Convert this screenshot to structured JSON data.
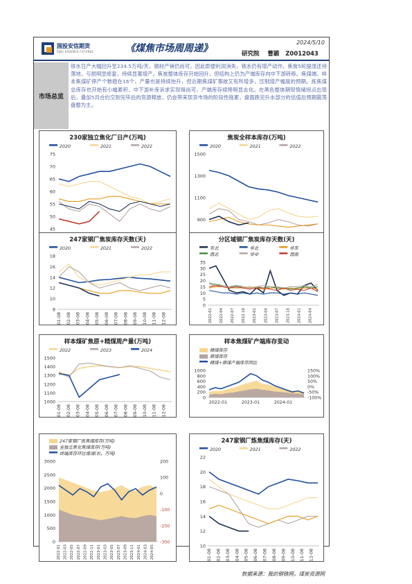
{
  "header": {
    "company": "国投安信期货",
    "company_en": "SDIC ESSENCE FUTURES",
    "title": "《煤焦市场周周递》",
    "date": "2024/5/10",
    "department": "研究院",
    "analyst": "曹颖",
    "analyst_id": "Z0012043"
  },
  "summary": {
    "label": "市场总览",
    "text": "铁水日产大幅回升至234.5万吨/天，钢材产销仍尚可，因此即便利润消失，铁水仍有增产动作。焦炭5轮提涨还待落地，亏损明显修复，持续显著增产。焦炭整体库存开始回升，但结构上仍为产端库存向中下游转移。焦煤端，样本焦煤矿停产个数稳在16个，产量也是持续抬升，但近期焦煤矿事故又有所增多，压制增产幅度的预期。炼焦煤总库存也开始有小幅累积，中下游补库诉求实现得尚可，产端库存续降明显去化。在黑色整体期现情绪拐点出现后，叠加5月合约交割完毕后的货源释放，仍会带来现货市场的阶段性拖累，盘面跌完升水部分的估值后预期震荡盘整为主。"
  },
  "colors": {
    "navy": "#1f4e9c",
    "lightorange": "#f6d58e",
    "gray": "#b3a3a3",
    "orange": "#e69a1c",
    "dark": "#1e2f4e",
    "green": "#4b8a3a",
    "red": "#c0392b"
  },
  "charts": [
    {
      "chart_data": {
        "type": "line",
        "title": "230家独立焦化厂日产(万吨)",
        "legend": [
          "2020",
          "2021",
          "2022"
        ],
        "ylim": [
          40,
          75
        ],
        "yticks": [
          "75",
          "70",
          "65",
          "60",
          "55",
          "50",
          "45",
          "40"
        ],
        "xticks": [
          "01-08",
          "02-08",
          "03-08",
          "04-08",
          "05-08",
          "06-08",
          "07-08",
          "08-08",
          "09-08",
          "10-08",
          "11-08",
          "12-08"
        ],
        "series": [
          {
            "name": "2020",
            "values": [
              65,
              64,
              66,
              67,
              68,
              68,
              69,
              70,
              71,
              70,
              68,
              66
            ]
          },
          {
            "name": "2021",
            "values": [
              63,
              62,
              63,
              64,
              64,
              62,
              60,
              58,
              57,
              55,
              56,
              57
            ]
          },
          {
            "name": "2022",
            "values": [
              56,
              53,
              52,
              55,
              54,
              51,
              48,
              53,
              55,
              53,
              52,
              54
            ]
          },
          {
            "values": [
              57,
              56,
              56,
              57,
              57,
              58,
              58,
              57,
              56,
              55,
              55,
              55
            ]
          },
          {
            "values": [
              55,
              54,
              53,
              56,
              55,
              53,
              52,
              55,
              56,
              55,
              54,
              55
            ]
          },
          {
            "values": [
              49,
              48,
              47,
              48,
              52
            ]
          }
        ]
      }
    },
    {
      "chart_data": {
        "type": "line",
        "title": "焦炭全样本库存(万吨)",
        "legend": [
          "2020",
          "2021",
          "2022"
        ],
        "ylim": [
          700,
          1500
        ],
        "yticks": [
          "1500",
          "1300",
          "1100",
          "900",
          "700"
        ],
        "xticks": [
          "01-08",
          "02-08",
          "03-08",
          "04-08",
          "05-08",
          "06-08",
          "07-08",
          "08-08",
          "09-08",
          "10-08",
          "11-08",
          "12-08"
        ],
        "series": [
          {
            "name": "2020",
            "values": [
              1350,
              1330,
              1300,
              1250,
              1200,
              1180,
              1170,
              1150,
              1120,
              1100,
              1080,
              1060
            ]
          },
          {
            "name": "2021",
            "values": [
              1000,
              1050,
              1000,
              950,
              900,
              920,
              980,
              1000,
              960,
              930,
              920,
              930
            ]
          },
          {
            "name": "2022",
            "values": [
              950,
              1000,
              980,
              900,
              880,
              850,
              870,
              900,
              880,
              850,
              840,
              860
            ]
          },
          {
            "values": [
              880,
              900,
              920,
              880,
              860,
              850,
              850,
              840,
              830,
              840,
              850,
              860
            ]
          },
          {
            "values": [
              900,
              930,
              880,
              850,
              870
            ]
          }
        ]
      }
    },
    {
      "chart_data": {
        "type": "line",
        "title": "247家钢厂焦炭库存天数(天)",
        "legend": [
          "2020",
          "2021",
          "2022"
        ],
        "ylim": [
          8,
          18
        ],
        "yticks": [
          "18",
          "16",
          "14",
          "12",
          "10",
          "8"
        ],
        "xticks": [
          "01-08",
          "02-08",
          "03-08",
          "04-08",
          "05-08",
          "06-08",
          "07-08",
          "08-08",
          "09-08",
          "10-08",
          "11-08",
          "12-08"
        ],
        "series": [
          {
            "name": "2020",
            "values": [
              14,
              13.5,
              13,
              13.2,
              13.5,
              13.6,
              13.8,
              14,
              13.8,
              13.7,
              13.5,
              13.3
            ]
          },
          {
            "name": "2021",
            "values": [
              15,
              16.5,
              14,
              13,
              12.5,
              13,
              13.5,
              14,
              14.5,
              14.5,
              15,
              15
            ]
          },
          {
            "name": "2022",
            "values": [
              14,
              16,
              15,
              13,
              12,
              12.5,
              13,
              12,
              11.5,
              12,
              12.5,
              12
            ]
          },
          {
            "values": [
              13,
              12.5,
              12,
              11.5,
              11,
              11,
              11.5,
              11.5,
              11.2,
              11,
              11,
              11.5
            ]
          },
          {
            "values": [
              13,
              12.5,
              12,
              11,
              10.5
            ]
          }
        ]
      }
    },
    {
      "chart_data": {
        "type": "line",
        "title": "分区域钢厂焦炭库存天数(天)",
        "legend": [
          "东北",
          "华北",
          "华东",
          "西北",
          "华中",
          "西南"
        ],
        "ylim": [
          0,
          35
        ],
        "yticks": [
          "35",
          "30",
          "25",
          "20",
          "15",
          "10",
          "5",
          "0"
        ],
        "xticks": [
          "2022-01",
          "2022-04",
          "2022-07",
          "2022-10",
          "2023-01",
          "2023-04",
          "2023-07",
          "2023-10",
          "2024-01",
          "2024-04"
        ],
        "series": [
          {
            "name": "东北",
            "values": [
              30,
              32,
              22,
              12,
              10,
              11,
              9,
              14,
              10,
              28,
              12,
              8,
              10,
              9,
              16,
              18,
              12
            ]
          },
          {
            "name": "华北",
            "values": [
              12,
              11,
              10,
              10,
              9,
              10,
              9,
              10,
              9,
              10,
              10,
              9,
              10,
              9,
              10,
              9,
              8
            ]
          },
          {
            "name": "华东",
            "values": [
              14,
              15,
              15,
              14,
              14,
              14,
              15,
              14,
              13,
              14,
              14,
              13,
              14,
              13,
              14,
              14,
              13
            ]
          },
          {
            "name": "西北",
            "values": [
              18,
              17,
              16,
              15,
              16,
              15,
              14,
              15,
              14,
              15,
              14,
              14,
              13,
              14,
              15,
              14,
              15
            ]
          },
          {
            "name": "华中",
            "values": [
              17,
              16,
              16,
              15,
              14,
              15,
              14,
              15,
              16,
              15,
              15,
              14,
              15,
              15,
              16,
              15,
              17
            ]
          },
          {
            "name": "西南",
            "values": [
              15,
              16,
              15,
              14,
              15,
              14,
              13,
              14,
              14,
              13,
              12,
              14,
              12,
              13,
              12,
              14,
              11
            ]
          }
        ]
      }
    },
    {
      "chart_data": {
        "type": "line",
        "title": "样本煤矿焦原+精煤周产量(万吨)",
        "legend": [
          "2022",
          "2023",
          "2024"
        ],
        "ylim": [
          1000,
          1500
        ],
        "yticks": [
          "1500",
          "1400",
          "1300",
          "1200",
          "1100",
          "1000"
        ],
        "xticks": [
          "01-08",
          "02-08",
          "03-08",
          "04-08",
          "05-08",
          "06-08",
          "07-08",
          "08-08",
          "09-08",
          "10-08",
          "11-08",
          "12-08"
        ],
        "series": [
          {
            "name": "2022",
            "values": [
              1340,
              1300,
              1380,
              1400,
              1410,
              1400,
              1390,
              1400,
              1400,
              1380,
              1360,
              1340
            ]
          },
          {
            "name": "2023",
            "values": [
              1330,
              1280,
              1430,
              1440,
              1420,
              1400,
              1390,
              1410,
              1380,
              1350,
              1280,
              1250
            ]
          },
          {
            "name": "2024",
            "values": [
              1320,
              1300,
              1050,
              1150,
              1250,
              1280,
              1310
            ]
          }
        ]
      }
    },
    {
      "chart_data": {
        "type": "area",
        "title": "样本焦煤矿产端库存变动",
        "legend": [
          "精煤库存",
          "原煤库存",
          "精煤+原煤产端库存同比"
        ],
        "ylim": [
          0,
          1000
        ],
        "yticks": [
          "1000",
          "800",
          "600",
          "400",
          "200",
          "0"
        ],
        "y2ticks": [
          "150%",
          "100%",
          "50%",
          "0%",
          "-50%",
          "-100%"
        ],
        "xticks": [
          "2022-01",
          "2023-01",
          "2024-01"
        ],
        "series": [
          {
            "name": "精煤库存",
            "values": [
              200,
              250,
              230,
              300,
              350,
              420,
              500,
              560,
              620,
              500,
              480,
              400,
              350,
              300,
              260,
              240,
              200
            ]
          },
          {
            "name": "原煤库存",
            "values": [
              100,
              130,
              120,
              160,
              180,
              220,
              260,
              300,
              320,
              280,
              260,
              220,
              200,
              180,
              150,
              140,
              120
            ]
          },
          {
            "name": "精煤+原煤产端库存同比",
            "values": [
              -30,
              -10,
              -20,
              0,
              20,
              40,
              80,
              120,
              100,
              60,
              40,
              10,
              -10,
              -30,
              -50,
              -40,
              -60
            ]
          }
        ]
      }
    },
    {
      "chart_data": {
        "type": "area",
        "legend": [
          "247家钢厂炼焦煤库存(万吨)",
          "全独立焦化焦煤库存(万吨)",
          "终端库存环比增减(右，万吨)"
        ],
        "ylim": [
          0,
          3000
        ],
        "yticks": [
          "3000",
          "2500",
          "2000",
          "1500",
          "1000",
          "500",
          "0"
        ],
        "y2ticks": [
          "200",
          "100",
          "0",
          "-100",
          "-200",
          "-300"
        ],
        "xticks": [
          "2022-01",
          "2022-03",
          "2022-05",
          "2022-07",
          "2022-09",
          "2022-11",
          "2023-01",
          "2023-03",
          "2023-05",
          "2023-07",
          "2023-09",
          "2023-11",
          "2024-01",
          "2024-03",
          "2024-05"
        ],
        "series": [
          {
            "name": "247家钢厂炼焦煤库存(万吨)",
            "values": [
              2400,
              2300,
              2200,
              2100,
              2000,
              1900,
              1850,
              1900,
              2000,
              2100,
              1950,
              1900,
              2050,
              2100,
              2000
            ]
          },
          {
            "name": "全独立焦化焦煤库存(万吨)",
            "values": [
              1200,
              1100,
              1000,
              950,
              900,
              850,
              800,
              850,
              900,
              950,
              900,
              880,
              950,
              1000,
              950
            ]
          },
          {
            "name": "终端库存环比增减(右，万吨)",
            "values": [
              50,
              20,
              -10,
              30,
              10,
              -20,
              40,
              60,
              20,
              -40,
              10,
              30,
              -10,
              20,
              40
            ]
          }
        ]
      }
    },
    {
      "chart_data": {
        "type": "line",
        "title": "247家钢厂炼焦煤库存(天)",
        "legend": [
          "2020",
          "2021",
          "2022"
        ],
        "ylim": [
          10,
          22
        ],
        "yticks": [
          "22",
          "20",
          "18",
          "16",
          "14",
          "12",
          "10"
        ],
        "xticks": [
          "01-08",
          "02-08",
          "03-08",
          "04-08",
          "05-08",
          "06-08",
          "07-08",
          "08-08",
          "09-08",
          "10-08",
          "11-08",
          "12-08"
        ],
        "series": [
          {
            "name": "2020",
            "values": [
              20,
              19,
              18.5,
              18,
              17.5,
              17,
              18,
              18.5,
              19,
              18.8,
              18.5,
              18.5
            ]
          },
          {
            "name": "2021",
            "values": [
              19,
              18,
              17,
              16.5,
              16,
              15.5,
              15,
              15,
              15.5,
              16,
              16.5,
              16.5
            ]
          },
          {
            "name": "2022",
            "values": [
              18,
              17.5,
              17,
              15,
              13,
              12.5,
              13,
              13.5,
              13,
              13.5,
              14,
              14
            ]
          },
          {
            "values": [
              15,
              15.5,
              15,
              14.5,
              14,
              13.5,
              13,
              13.5,
              14,
              14,
              13.5,
              14
            ]
          },
          {
            "values": [
              14,
              13,
              12.5,
              12,
              12
            ]
          }
        ]
      }
    }
  ],
  "source": "数据来源：我的钢铁网，煤炭资源网"
}
